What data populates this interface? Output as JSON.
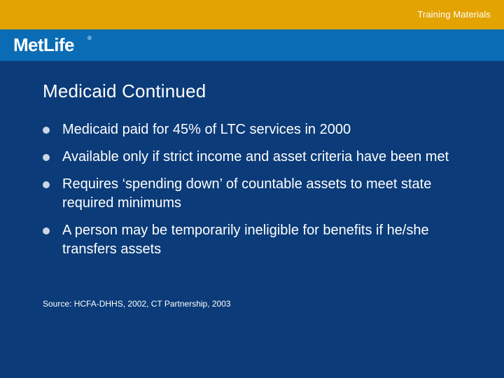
{
  "header": {
    "label": "Training Materials",
    "accent_color": "#e3a300"
  },
  "logo_band": {
    "logo_text": "MetLife",
    "logo_mark": "®",
    "band_color": "#0a6cb5"
  },
  "slide": {
    "background_color": "#0b3b78",
    "title": "Medicaid Continued",
    "bullets": [
      "Medicaid paid for 45% of LTC services in 2000",
      "Available only if strict income and asset criteria have been met",
      "Requires ‘spending down’ of countable assets to meet state required minimums",
      "A person may be temporarily ineligible for benefits if he/she transfers assets"
    ],
    "source": "Source: HCFA-DHHS, 2002,  CT Partnership, 2003"
  }
}
